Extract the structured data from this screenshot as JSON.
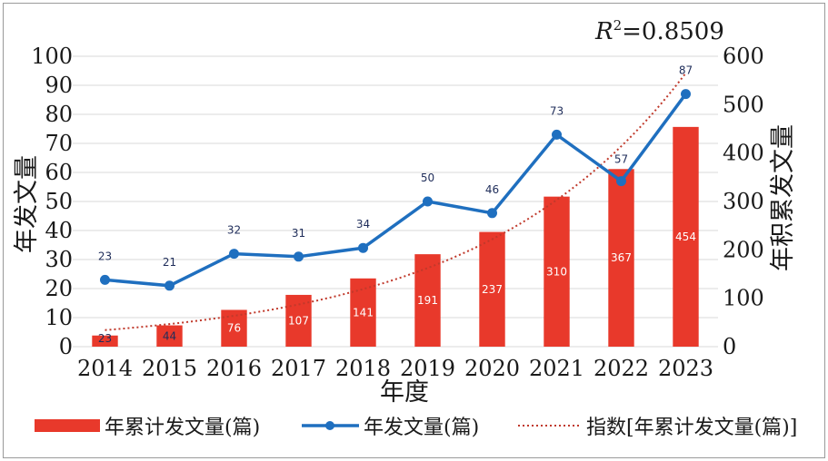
{
  "chart_data": {
    "type": "bar",
    "categories": [
      "2014",
      "2015",
      "2016",
      "2017",
      "2018",
      "2019",
      "2020",
      "2021",
      "2022",
      "2023"
    ],
    "series": [
      {
        "name": "年累计发文量(篇)",
        "type": "bar",
        "axis": "right",
        "values": [
          23,
          44,
          76,
          107,
          141,
          191,
          237,
          310,
          367,
          454
        ],
        "color": "#e8392b"
      },
      {
        "name": "年发文量(篇)",
        "type": "line",
        "axis": "left",
        "values": [
          23,
          21,
          32,
          31,
          34,
          50,
          46,
          73,
          57,
          87
        ],
        "color": "#1f6fbf"
      },
      {
        "name": "指数[年累计发文量(篇)]",
        "type": "trendline-exponential",
        "axis": "right",
        "color": "#c0392b"
      }
    ],
    "annotation": {
      "r2_prefix": "R",
      "r2_sup": "2",
      "r2_value": "=0.8509"
    },
    "xlabel": "年度",
    "ylabel": "年发文量",
    "y2label": "年积累发文量",
    "ylim": [
      0,
      100
    ],
    "yticks": [
      0,
      10,
      20,
      30,
      40,
      50,
      60,
      70,
      80,
      90,
      100
    ],
    "y2lim": [
      0,
      600
    ],
    "y2ticks": [
      0,
      100,
      200,
      300,
      400,
      500,
      600
    ],
    "grid": true,
    "legend_position": "bottom"
  }
}
